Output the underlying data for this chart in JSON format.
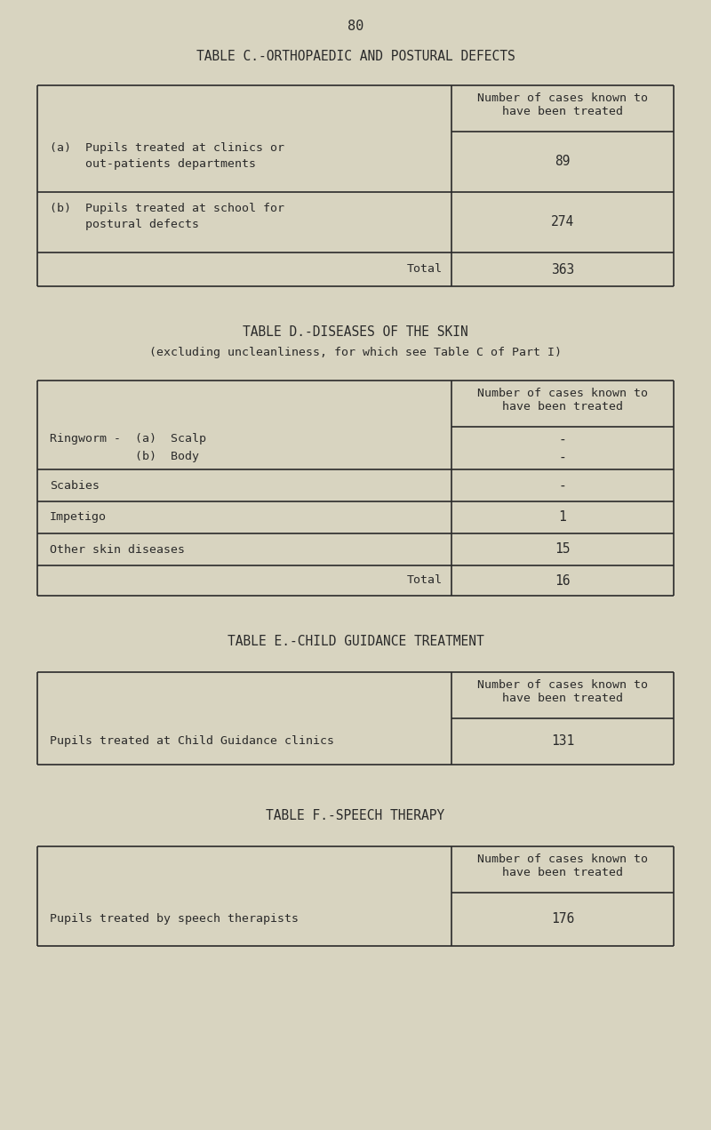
{
  "bg_color": "#d8d4c0",
  "text_color": "#2a2a2a",
  "line_color": "#2a2a2a",
  "page_number": "80",
  "table_c": {
    "title": "TABLE C.-ORTHOPAEDIC AND POSTURAL DEFECTS",
    "col_header": "Number of cases known to\nhave been treated",
    "row_a_label_1": "(a)  Pupils treated at clinics or",
    "row_a_label_2": "     out-patients departments",
    "row_b_label_1": "(b)  Pupils treated at school for",
    "row_b_label_2": "     postural defects",
    "row_a_value": "89",
    "row_b_value": "274",
    "total_label": "Total",
    "total_value": "363"
  },
  "table_d": {
    "title": "TABLE D.-DISEASES OF THE SKIN",
    "subtitle": "(excluding uncleanliness, for which see Table C of Part I)",
    "col_header": "Number of cases known to\nhave been treated",
    "rows": [
      {
        "label": "Ringworm -  (a)  Scalp",
        "label2": "            (b)  Body",
        "value": "-",
        "value2": "-",
        "two_line": true
      },
      {
        "label": "Scabies",
        "value": "-",
        "two_line": false
      },
      {
        "label": "Impetigo",
        "value": "1",
        "two_line": false
      },
      {
        "label": "Other skin diseases",
        "value": "15",
        "two_line": false
      }
    ],
    "total_label": "Total",
    "total_value": "16"
  },
  "table_e": {
    "title": "TABLE E.-CHILD GUIDANCE TREATMENT",
    "col_header": "Number of cases known to\nhave been treated",
    "row_label": "Pupils treated at Child Guidance clinics",
    "row_value": "131"
  },
  "table_f": {
    "title": "TABLE F.-SPEECH THERAPY",
    "col_header": "Number of cases known to\nhave been treated",
    "row_label": "Pupils treated by speech therapists",
    "row_value": "176"
  }
}
